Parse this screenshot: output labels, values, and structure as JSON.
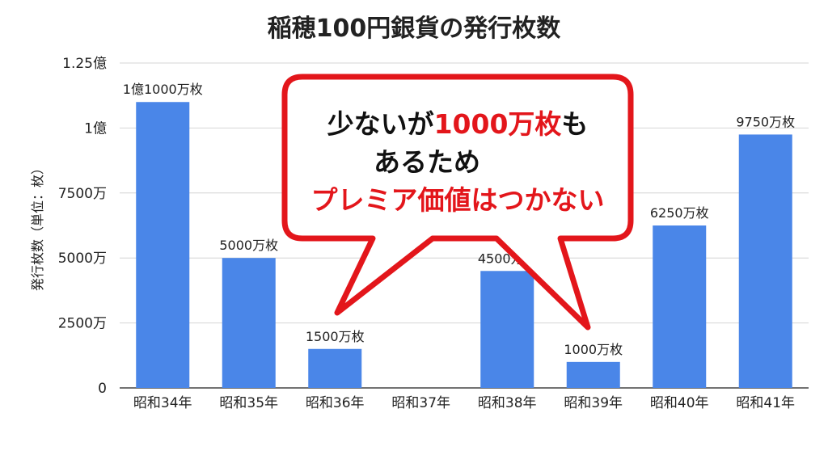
{
  "chart_data": {
    "type": "bar",
    "title": "稲穂100円銀貨の発行枚数",
    "xlabel": "",
    "ylabel": "発行枚数（単位：枚）",
    "categories": [
      "昭和34年",
      "昭和35年",
      "昭和36年",
      "昭和37年",
      "昭和38年",
      "昭和39年",
      "昭和40年",
      "昭和41年"
    ],
    "values": [
      110000000,
      50000000,
      15000000,
      0,
      45000000,
      10000000,
      62500000,
      97500000
    ],
    "data_labels": [
      "1億1000万枚",
      "5000万枚",
      "1500万枚",
      "",
      "4500万枚",
      "1000万枚",
      "6250万枚",
      "9750万枚"
    ],
    "ylim": [
      0,
      125000000
    ],
    "yticks": [
      0,
      25000000,
      50000000,
      75000000,
      100000000,
      125000000
    ],
    "ytick_labels": [
      "0",
      "2500万",
      "5000万",
      "7500万",
      "1億",
      "1.25億"
    ],
    "grid": true,
    "bar_color": "#4a86e8"
  },
  "callout": {
    "line1_a": "少ないが",
    "line1_b": "1000万枚",
    "line1_c": "も",
    "line2": "あるため",
    "line3": "プレミア価値はつかない",
    "border_color": "#e3161b",
    "highlight_color": "#e3161b",
    "text_color": "#111111"
  }
}
